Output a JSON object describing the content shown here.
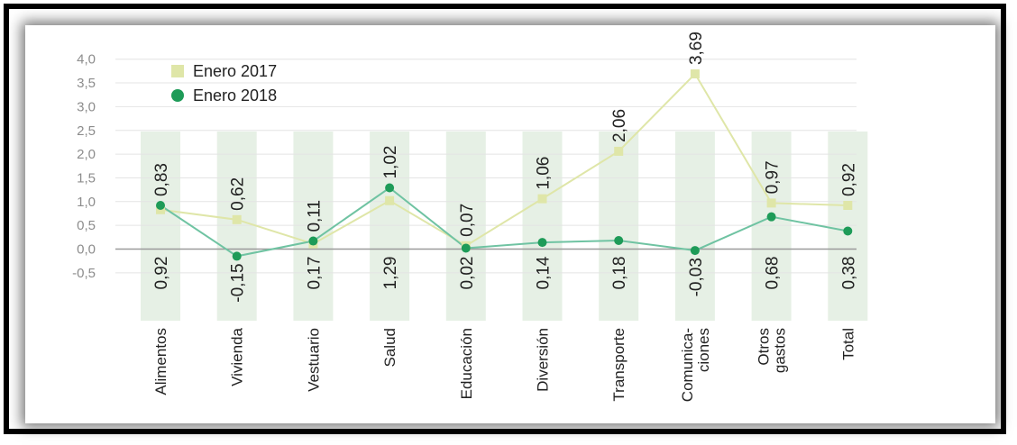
{
  "chart_data": {
    "type": "line",
    "categories": [
      "Alimentos",
      "Vivienda",
      "Vestuario",
      "Salud",
      "Educación",
      "Diversión",
      "Transporte",
      "Comunica-\nciones",
      "Otros\ngastos",
      "Total"
    ],
    "series": [
      {
        "name": "Enero 2017",
        "color": "#dfe6a8",
        "marker": "square",
        "values": [
          0.83,
          0.62,
          0.11,
          1.02,
          0.07,
          1.06,
          2.06,
          3.69,
          0.97,
          0.92
        ],
        "labels": [
          "0,83",
          "0,62",
          "0,11",
          "1,02",
          "0,07",
          "1,06",
          "2,06",
          "3,69",
          "0,97",
          "0,92"
        ]
      },
      {
        "name": "Enero 2018",
        "color": "#1e9b58",
        "marker": "circle",
        "values": [
          0.92,
          -0.15,
          0.17,
          1.29,
          0.02,
          0.14,
          0.18,
          -0.03,
          0.68,
          0.38
        ],
        "labels": [
          "0,92",
          "-0,15",
          "0,17",
          "1,29",
          "0,02",
          "0,14",
          "0,18",
          "-0,03",
          "0,68",
          "0,38"
        ]
      }
    ],
    "yticks": [
      "4,0",
      "3,5",
      "3,0",
      "2,5",
      "2,0",
      "1,5",
      "1,0",
      "0,5",
      "0,0",
      "-0,5"
    ],
    "ylim": [
      -0.5,
      4.0
    ],
    "legend_position": "top-left",
    "grid": true,
    "background_bar_color": "#e6f0e5",
    "line_color_2018": "#6fc3a2"
  }
}
